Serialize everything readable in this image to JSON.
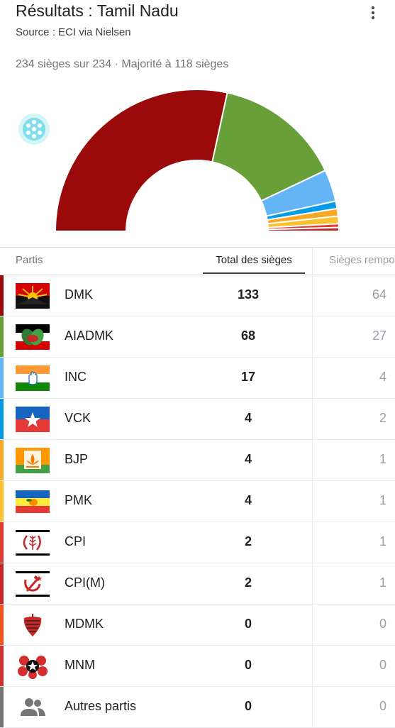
{
  "header": {
    "title": "Résultats : Tamil Nadu",
    "source": "Source : ECI via Nielsen",
    "summary": "234 sièges sur 234 · Majorité à 118 sièges"
  },
  "table": {
    "columns": [
      "Partis",
      "Total des sièges",
      "Sièges remportés"
    ],
    "rows": [
      {
        "party": "DMK",
        "total": "133",
        "won": "64",
        "color": "#9b0a0a",
        "icon": "dmk-rising-sun-flag-icon"
      },
      {
        "party": "AIADMK",
        "total": "68",
        "won": "27",
        "color": "#689f38",
        "icon": "aiadmk-two-leaves-icon"
      },
      {
        "party": "INC",
        "total": "17",
        "won": "4",
        "color": "#64b5f6",
        "icon": "inc-hand-flag-icon"
      },
      {
        "party": "VCK",
        "total": "4",
        "won": "2",
        "color": "#039be5",
        "icon": "vck-star-flag-icon"
      },
      {
        "party": "BJP",
        "total": "4",
        "won": "1",
        "color": "#f9a825",
        "icon": "bjp-lotus-flag-icon"
      },
      {
        "party": "PMK",
        "total": "4",
        "won": "1",
        "color": "#fbc02d",
        "icon": "pmk-mango-flag-icon"
      },
      {
        "party": "CPI",
        "total": "2",
        "won": "1",
        "color": "#e53935",
        "icon": "cpi-sickle-wheat-icon"
      },
      {
        "party": "CPI(M)",
        "total": "2",
        "won": "1",
        "color": "#c62828",
        "icon": "cpim-hammer-sickle-icon"
      },
      {
        "party": "MDMK",
        "total": "0",
        "won": "0",
        "color": "#f4511e",
        "icon": "mdmk-top-icon"
      },
      {
        "party": "MNM",
        "total": "0",
        "won": "0",
        "color": "#d32f2f",
        "icon": "mnm-hands-star-icon"
      },
      {
        "party": "Autres partis",
        "total": "0",
        "won": "0",
        "color": "#757575",
        "icon": "group-people-icon"
      }
    ]
  },
  "chart_data": {
    "type": "pie",
    "shape": "half-donut",
    "categories": [
      "DMK",
      "AIADMK",
      "INC",
      "VCK",
      "BJP",
      "PMK",
      "CPI",
      "CPI(M)"
    ],
    "values": [
      133,
      68,
      17,
      4,
      4,
      4,
      2,
      2
    ],
    "colors": [
      "#9b0a0a",
      "#689f38",
      "#64b5f6",
      "#039be5",
      "#f9a825",
      "#fbc02d",
      "#e53935",
      "#c62828"
    ],
    "total_seats": 234
  }
}
